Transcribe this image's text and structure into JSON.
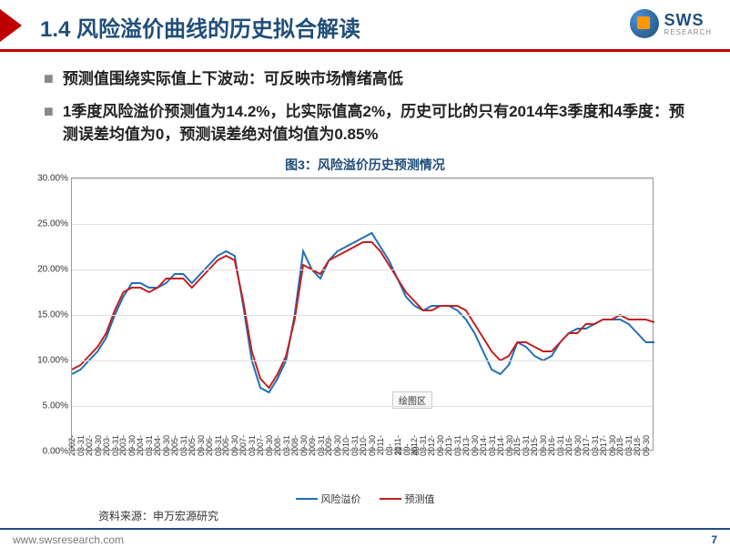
{
  "header": {
    "title": "1.4 风险溢价曲线的历史拟合解读",
    "logo_main": "SWS",
    "logo_sub": "RESEARCH"
  },
  "bullets": [
    "预测值围绕实际值上下波动：可反映市场情绪高低",
    "1季度风险溢价预测值为14.2%，比实际值高2%，历史可比的只有2014年3季度和4季度：预测误差均值为0，预测误差绝对值均值为0.85%"
  ],
  "chart": {
    "title": "图3：风险溢价历史预测情况",
    "type": "line",
    "ylim": [
      0,
      30
    ],
    "ytick_step": 5,
    "ylabels": [
      "0.00%",
      "5.00%",
      "10.00%",
      "15.00%",
      "20.00%",
      "25.00%",
      "30.00%"
    ],
    "xlabels": [
      "2002-03-31",
      "2002-09-30",
      "2003-03-31",
      "2003-09-30",
      "2004-03-31",
      "2004-09-30",
      "2005-03-31",
      "2005-09-30",
      "2006-03-31",
      "2006-09-30",
      "2007-03-31",
      "2007-09-30",
      "2008-03-31",
      "2008-09-30",
      "2009-03-31",
      "2009-09-30",
      "2010-03-31",
      "2010-09-30",
      "2011-03-31",
      "2011-09-30",
      "2012-03-31",
      "2012-09-30",
      "2013-03-31",
      "2013-09-30",
      "2014-03-31",
      "2014-09-30",
      "2015-03-31",
      "2015-09-30",
      "2016-03-31",
      "2016-09-30",
      "2017-03-31",
      "2017-09-30",
      "2018-03-31",
      "2018-09-30"
    ],
    "series": [
      {
        "name": "风险溢价",
        "color": "#1f6fb5",
        "values": [
          8.5,
          9,
          10,
          11,
          12.5,
          15,
          17,
          18.5,
          18.5,
          18,
          18,
          18.5,
          19.5,
          19.5,
          18.5,
          19.5,
          20.5,
          21.5,
          22,
          21.5,
          16,
          10,
          7,
          6.5,
          8,
          10,
          15,
          22,
          20,
          19,
          21,
          22,
          22.5,
          23,
          23.5,
          24,
          22.5,
          21,
          19,
          17,
          16,
          15.5,
          16,
          16,
          16,
          15.5,
          14.5,
          13,
          11,
          9,
          8.5,
          9.5,
          12,
          11.5,
          10.5,
          10,
          10.5,
          12,
          13,
          13.5,
          13.5,
          14,
          14.5,
          14.5,
          14.5,
          14,
          13,
          12,
          12
        ]
      },
      {
        "name": "预测值",
        "color": "#c22020",
        "values": [
          9,
          9.5,
          10.5,
          11.5,
          13,
          15.5,
          17.5,
          18,
          18,
          17.5,
          18,
          19,
          19,
          19,
          18,
          19,
          20,
          21,
          21.5,
          21,
          16.5,
          11,
          8,
          7,
          8.5,
          10.5,
          14.5,
          20.5,
          20,
          19.5,
          21,
          21.5,
          22,
          22.5,
          23,
          23,
          22,
          20.5,
          19,
          17.5,
          16.5,
          15.5,
          15.5,
          16,
          16,
          16,
          15.5,
          14,
          12.5,
          11,
          10,
          10.5,
          12,
          12,
          11.5,
          11,
          11,
          12,
          13,
          13,
          14,
          14,
          14.5,
          14.5,
          15,
          14.5,
          14.5,
          14.5,
          14.2
        ]
      }
    ],
    "tooltip": "绘图区",
    "background_color": "#ffffff",
    "grid_color": "#e0e0e0",
    "border_color": "#999999"
  },
  "source": "资料来源：申万宏源研究",
  "footer": {
    "url": "www.swsresearch.com",
    "page": "7"
  }
}
